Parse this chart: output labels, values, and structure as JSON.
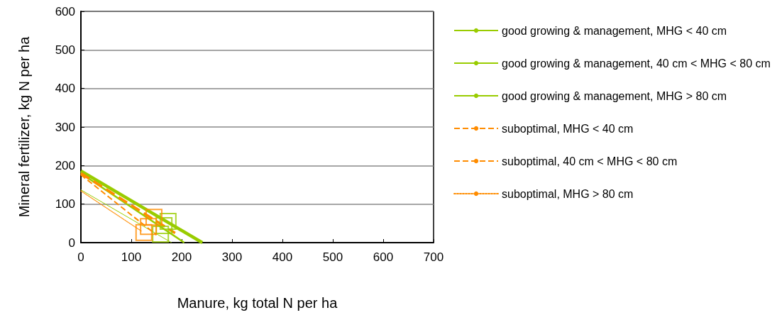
{
  "chart_data": {
    "type": "line",
    "xlabel": "Manure, kg total N per ha",
    "ylabel": "Mineral fertilizer, kg N per ha",
    "xlim": [
      0,
      700
    ],
    "xticks": [
      0,
      100,
      200,
      300,
      400,
      500,
      600,
      700
    ],
    "ylim": [
      0,
      600
    ],
    "yticks": [
      0,
      100,
      200,
      300,
      400,
      500,
      600
    ],
    "grid": "y",
    "legend": "right",
    "marker": "none",
    "series": [
      {
        "name": "good growing & management, MHG < 40 cm",
        "color": "#99cc00",
        "line_style": "solid",
        "x": [
          0,
          241
        ],
        "values": [
          186,
          0
        ]
      },
      {
        "name": "good growing & management, 40 cm < MHG < 80 cm",
        "color": "#99cc00",
        "line_style": "solid",
        "x": [
          0,
          205
        ],
        "values": [
          180,
          0
        ]
      },
      {
        "name": "good growing & management, MHG > 80 cm",
        "color": "#99cc00",
        "line_style": "solid",
        "x": [
          0,
          180
        ],
        "values": [
          137,
          0
        ]
      },
      {
        "name": "suboptimal, MHG < 40 cm",
        "color": "#ff8c00",
        "line_style": "dashed",
        "x": [
          0,
          187
        ],
        "values": [
          180,
          25
        ]
      },
      {
        "name": "suboptimal, 40 cm < MHG < 80 cm",
        "color": "#ff8c00",
        "line_style": "dashed",
        "x": [
          0,
          150
        ],
        "values": [
          176,
          20
        ]
      },
      {
        "name": "suboptimal, MHG > 80 cm",
        "color": "#ff8c00",
        "line_style": "dotted",
        "x": [
          0,
          120
        ],
        "values": [
          134,
          30
        ]
      },
      {
        "type": "scatter",
        "marker": "square",
        "color": "#99cc00",
        "x": [
          173,
          165,
          158
        ],
        "values": [
          55,
          44,
          22
        ]
      },
      {
        "type": "scatter",
        "marker": "square",
        "color": "#ff8c00",
        "x": [
          145,
          134,
          125
        ],
        "values": [
          66,
          42,
          26
        ]
      }
    ]
  }
}
